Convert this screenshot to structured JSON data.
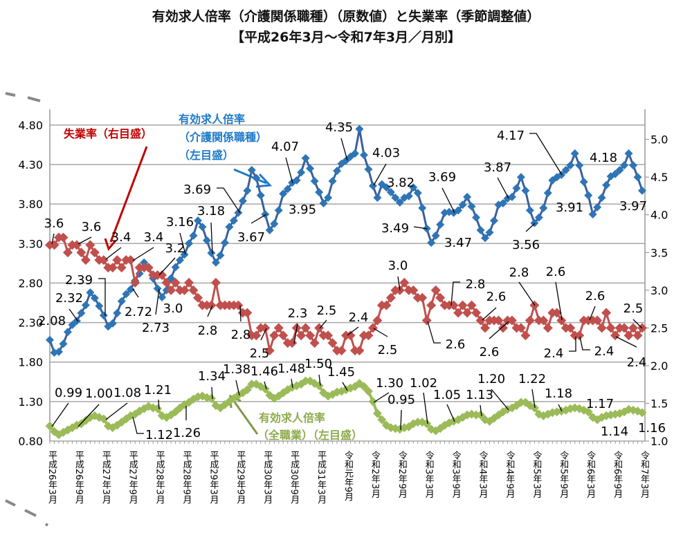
{
  "title": {
    "line1": "有効求人倍率（介護関係職種）（原数値）と失業率（季節調整値）",
    "line2": "【平成26年3月～令和7年3月／月別】"
  },
  "annotations": {
    "unemployment": "失業率（右目盛）",
    "care_ratio_1": "有効求人倍率",
    "care_ratio_2": "（介護関係職種）",
    "care_ratio_3": "（左目盛）",
    "all_ratio_1": "有効求人倍率",
    "all_ratio_2": "（全職業）（左目盛）"
  },
  "chart_data": {
    "type": "line",
    "title": "有効求人倍率（介護関係職種）（原数値）と失業率（季節調整値）【平成26年3月～令和7年3月／月別】",
    "frequency": "monthly",
    "x_range": [
      "平成26年3月",
      "令和7年3月"
    ],
    "x_tick_labels": [
      "平成26年3月",
      "平成26年9月",
      "平成27年3月",
      "平成27年9月",
      "平成28年3月",
      "平成28年9月",
      "平成29年3月",
      "平成29年9月",
      "平成30年3月",
      "平成30年9月",
      "平成31年3月",
      "令和元年9月",
      "令和2年3月",
      "令和2年9月",
      "令和3年3月",
      "令和3年9月",
      "令和4年3月",
      "令和4年9月",
      "令和5年3月",
      "令和5年9月",
      "令和6年3月",
      "令和6年9月",
      "令和7年3月"
    ],
    "left_axis": {
      "ticks": [
        "0.80",
        "1.30",
        "1.80",
        "2.30",
        "2.80",
        "3.30",
        "3.80",
        "4.30",
        "4.80"
      ],
      "ylim": [
        0.8,
        5.0
      ]
    },
    "right_axis": {
      "ticks": [
        "1.0",
        "1.5",
        "2.0",
        "2.5",
        "3.0",
        "3.5",
        "4.0",
        "4.5",
        "5.0"
      ],
      "ylim": [
        1.0,
        5.4
      ]
    },
    "grid": "horizontal",
    "series": [
      {
        "name": "有効求人倍率（介護関係職種）（左目盛）",
        "axis": "left",
        "color": "#2E75B6",
        "line_color": "#3A5F9A",
        "marker": "diamond",
        "values": [
          2.08,
          1.92,
          1.93,
          2.03,
          2.18,
          2.27,
          2.32,
          2.42,
          2.52,
          2.68,
          2.61,
          2.51,
          2.39,
          2.25,
          2.29,
          2.42,
          2.57,
          2.66,
          2.72,
          2.83,
          2.92,
          3.06,
          2.99,
          2.86,
          2.73,
          2.62,
          2.71,
          2.86,
          3.0,
          3.09,
          3.16,
          3.3,
          3.4,
          3.59,
          3.51,
          3.34,
          3.18,
          3.06,
          3.15,
          3.31,
          3.51,
          3.59,
          3.69,
          3.84,
          3.97,
          4.23,
          4.13,
          3.91,
          3.67,
          3.47,
          3.55,
          3.72,
          3.93,
          3.99,
          4.07,
          4.1,
          4.2,
          4.38,
          4.25,
          4.09,
          3.95,
          3.81,
          3.88,
          4.09,
          4.22,
          4.31,
          4.35,
          4.4,
          4.44,
          4.75,
          4.42,
          4.24,
          4.03,
          3.88,
          4.05,
          4.01,
          3.95,
          3.88,
          3.82,
          3.88,
          3.9,
          4.01,
          3.94,
          3.75,
          3.49,
          3.31,
          3.4,
          3.54,
          3.69,
          3.7,
          3.69,
          3.72,
          3.79,
          3.89,
          3.77,
          3.63,
          3.47,
          3.37,
          3.44,
          3.59,
          3.79,
          3.81,
          3.87,
          3.89,
          4.0,
          4.14,
          3.97,
          3.72,
          3.56,
          3.63,
          3.75,
          3.94,
          4.1,
          4.14,
          4.17,
          4.23,
          4.29,
          4.44,
          4.29,
          4.08,
          3.91,
          3.67,
          3.76,
          3.88,
          4.04,
          4.15,
          4.18,
          4.23,
          4.29,
          4.44,
          4.29,
          4.14,
          3.97
        ],
        "labels": [
          {
            "x": "平成26年3月",
            "text": "2.08"
          },
          {
            "x": "平成26年9月",
            "text": "2.32"
          },
          {
            "x": "平成27年3月",
            "text": "2.39"
          },
          {
            "x": "平成27年9月",
            "text": "2.72"
          },
          {
            "x": "平成28年3月",
            "text": "2.73"
          },
          {
            "x": "平成28年9月",
            "text": "3.16"
          },
          {
            "x": "平成29年3月",
            "text": "3.18"
          },
          {
            "x": "平成29年9月",
            "text": "3.69"
          },
          {
            "x": "平成30年3月",
            "text": "3.67"
          },
          {
            "x": "平成30年9月",
            "text": "4.07"
          },
          {
            "x": "平成31年3月",
            "text": "3.95"
          },
          {
            "x": "令和元年9月",
            "text": "4.35"
          },
          {
            "x": "令和2年3月",
            "text": "4.03"
          },
          {
            "x": "令和2年9月",
            "text": "3.82"
          },
          {
            "x": "令和3年3月",
            "text": "3.49"
          },
          {
            "x": "令和3年9月",
            "text": "3.69"
          },
          {
            "x": "令和4年3月",
            "text": "3.47"
          },
          {
            "x": "令和4年9月",
            "text": "3.87"
          },
          {
            "x": "令和5年3月",
            "text": "3.56"
          },
          {
            "x": "令和5年9月",
            "text": "4.17"
          },
          {
            "x": "令和6年3月",
            "text": "3.91"
          },
          {
            "x": "令和6年9月",
            "text": "4.18"
          },
          {
            "x": "令和7年3月",
            "text": "3.97"
          }
        ]
      },
      {
        "name": "失業率（右目盛）",
        "axis": "right",
        "color": "#C0504D",
        "marker": "diamond",
        "values": [
          3.6,
          3.6,
          3.7,
          3.7,
          3.5,
          3.6,
          3.6,
          3.5,
          3.4,
          3.6,
          3.5,
          3.4,
          3.4,
          3.3,
          3.3,
          3.4,
          3.3,
          3.4,
          3.4,
          3.1,
          3.3,
          3.3,
          3.3,
          3.2,
          3.2,
          3.2,
          3.1,
          3.0,
          3.1,
          3.0,
          3.0,
          3.1,
          3.0,
          2.9,
          2.8,
          2.8,
          2.8,
          3.1,
          2.8,
          2.8,
          2.8,
          2.8,
          2.8,
          2.7,
          2.7,
          2.4,
          2.4,
          2.5,
          2.5,
          2.2,
          2.4,
          2.5,
          2.4,
          2.3,
          2.3,
          2.5,
          2.4,
          2.5,
          2.4,
          2.3,
          2.5,
          2.4,
          2.4,
          2.3,
          2.2,
          2.2,
          2.4,
          2.4,
          2.2,
          2.2,
          2.4,
          2.4,
          2.5,
          2.6,
          2.8,
          2.8,
          2.9,
          3.0,
          3.0,
          3.1,
          3.0,
          3.0,
          2.9,
          2.9,
          2.6,
          2.8,
          3.0,
          2.9,
          2.8,
          2.8,
          2.8,
          2.7,
          2.8,
          2.7,
          2.8,
          2.7,
          2.6,
          2.5,
          2.6,
          2.6,
          2.6,
          2.5,
          2.6,
          2.6,
          2.5,
          2.5,
          2.4,
          2.6,
          2.8,
          2.6,
          2.6,
          2.5,
          2.7,
          2.7,
          2.6,
          2.5,
          2.5,
          2.4,
          2.4,
          2.6,
          2.6,
          2.6,
          2.6,
          2.5,
          2.7,
          2.5,
          2.4,
          2.5,
          2.5,
          2.4,
          2.5,
          2.4,
          2.5
        ],
        "labels": [
          {
            "x": "平成26年3月",
            "text": "3.6"
          },
          {
            "x": "平成26年9月",
            "text": "3.6"
          },
          {
            "x": "平成27年3月",
            "text": "3.4"
          },
          {
            "x": "平成27年9月",
            "text": "3.4"
          },
          {
            "x": "平成28年3月",
            "text": "3.2"
          },
          {
            "x": "平成28年9月",
            "text": "3.0"
          },
          {
            "x": "平成29年3月",
            "text": "2.8"
          },
          {
            "x": "平成29年9月",
            "text": "2.8"
          },
          {
            "x": "平成30年3月",
            "text": "2.5"
          },
          {
            "x": "平成30年9月",
            "text": "2.3"
          },
          {
            "x": "平成31年3月",
            "text": "2.5"
          },
          {
            "x": "令和元年9月",
            "text": "2.4"
          },
          {
            "x": "令和2年3月",
            "text": "2.5"
          },
          {
            "x": "令和2年9月",
            "text": "3.0"
          },
          {
            "x": "令和3年3月",
            "text": "2.6"
          },
          {
            "x": "令和3年9月",
            "text": "2.8"
          },
          {
            "x": "令和4年3月",
            "text": "2.6"
          },
          {
            "x": "令和4年9月",
            "text": "2.6"
          },
          {
            "x": "令和5年3月",
            "text": "2.8"
          },
          {
            "x": "令和5年9月",
            "text": "2.6"
          },
          {
            "x": "令和5年12月",
            "text": "2.4"
          },
          {
            "x": "令和6年1月",
            "text": "2.4"
          },
          {
            "x": "令和6年3月",
            "text": "2.6"
          },
          {
            "x": "令和7年3月",
            "text": "2.5"
          },
          {
            "x": "令和6年9月",
            "text": "2.4"
          }
        ]
      },
      {
        "name": "有効求人倍率（全職業）（左目盛）",
        "axis": "left",
        "color": "#9BBB59",
        "marker": "diamond",
        "values": [
          0.99,
          0.92,
          0.88,
          0.91,
          0.94,
          0.97,
          1.0,
          1.02,
          1.06,
          1.1,
          1.12,
          1.1,
          1.08,
          0.99,
          0.97,
          1.0,
          1.04,
          1.08,
          1.12,
          1.14,
          1.18,
          1.21,
          1.24,
          1.22,
          1.21,
          1.12,
          1.1,
          1.13,
          1.17,
          1.22,
          1.26,
          1.29,
          1.33,
          1.36,
          1.37,
          1.35,
          1.34,
          1.25,
          1.22,
          1.26,
          1.3,
          1.34,
          1.38,
          1.41,
          1.45,
          1.52,
          1.52,
          1.49,
          1.46,
          1.38,
          1.34,
          1.37,
          1.41,
          1.45,
          1.48,
          1.5,
          1.52,
          1.56,
          1.56,
          1.53,
          1.5,
          1.41,
          1.37,
          1.39,
          1.42,
          1.43,
          1.45,
          1.47,
          1.49,
          1.53,
          1.49,
          1.43,
          1.3,
          1.15,
          1.07,
          1.0,
          0.97,
          0.96,
          0.95,
          0.97,
          0.98,
          1.02,
          1.04,
          1.04,
          1.02,
          0.95,
          0.93,
          0.96,
          1.0,
          1.03,
          1.05,
          1.07,
          1.1,
          1.13,
          1.14,
          1.13,
          1.13,
          1.07,
          1.05,
          1.09,
          1.13,
          1.17,
          1.2,
          1.22,
          1.25,
          1.29,
          1.29,
          1.25,
          1.22,
          1.14,
          1.12,
          1.14,
          1.16,
          1.17,
          1.18,
          1.19,
          1.21,
          1.22,
          1.21,
          1.19,
          1.17,
          1.1,
          1.07,
          1.1,
          1.12,
          1.13,
          1.14,
          1.15,
          1.17,
          1.2,
          1.19,
          1.18,
          1.16
        ],
        "labels": [
          {
            "x": "平成26年3月",
            "text": "0.99"
          },
          {
            "x": "平成26年9月",
            "text": "1.00"
          },
          {
            "x": "平成27年3月",
            "text": "1.08"
          },
          {
            "x": "平成27年9月",
            "text": "1.12"
          },
          {
            "x": "平成28年3月",
            "text": "1.21"
          },
          {
            "x": "平成28年9月",
            "text": "1.26"
          },
          {
            "x": "平成29年3月",
            "text": "1.34"
          },
          {
            "x": "平成29年9月",
            "text": "1.38"
          },
          {
            "x": "平成30年3月",
            "text": "1.46"
          },
          {
            "x": "平成30年9月",
            "text": "1.48"
          },
          {
            "x": "平成31年3月",
            "text": "1.50"
          },
          {
            "x": "令和元年9月",
            "text": "1.45"
          },
          {
            "x": "令和2年3月",
            "text": "1.30"
          },
          {
            "x": "令和2年9月",
            "text": "0.95"
          },
          {
            "x": "令和3年3月",
            "text": "1.02"
          },
          {
            "x": "令和3年9月",
            "text": "1.05"
          },
          {
            "x": "令和4年3月",
            "text": "1.13"
          },
          {
            "x": "令和4年9月",
            "text": "1.20"
          },
          {
            "x": "令和5年3月",
            "text": "1.22"
          },
          {
            "x": "令和5年9月",
            "text": "1.18"
          },
          {
            "x": "令和6年3月",
            "text": "1.17"
          },
          {
            "x": "令和6年9月",
            "text": "1.14"
          },
          {
            "x": "令和7年3月",
            "text": "1.16"
          }
        ]
      }
    ]
  },
  "colors": {
    "unemployment_text": "#C00000",
    "care_text": "#1F7AC8",
    "all_text": "#8DAA4B",
    "grid": "#A6A6A6"
  }
}
